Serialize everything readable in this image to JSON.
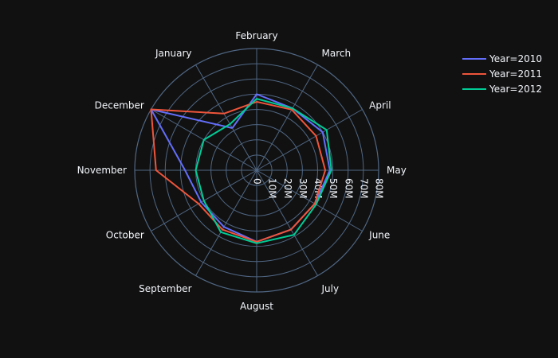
{
  "chart_data": {
    "type": "line",
    "subtype": "polar",
    "categories": [
      "January",
      "February",
      "March",
      "April",
      "May",
      "June",
      "July",
      "August",
      "September",
      "October",
      "November",
      "December"
    ],
    "radial_axis": {
      "range": [
        0,
        80000000
      ],
      "tick_values": [
        0,
        10000000,
        20000000,
        30000000,
        40000000,
        50000000,
        60000000,
        70000000,
        80000000
      ],
      "tick_labels": [
        "0",
        "10M",
        "20M",
        "30M",
        "40M",
        "50M",
        "60M",
        "70M",
        "80M"
      ]
    },
    "series": [
      {
        "name": "Year=2010",
        "color": "#636efa",
        "values": [
          32000000,
          50000000,
          47000000,
          50000000,
          48000000,
          44000000,
          45000000,
          47000000,
          43000000,
          42000000,
          47000000,
          80000000
        ]
      },
      {
        "name": "Year=2011",
        "color": "#ef553b",
        "values": [
          43000000,
          45000000,
          46000000,
          45000000,
          45000000,
          44000000,
          45000000,
          47000000,
          45000000,
          44000000,
          66000000,
          80000000
        ]
      },
      {
        "name": "Year=2012",
        "color": "#00cc96",
        "values": [
          35000000,
          47000000,
          47000000,
          53000000,
          49000000,
          45000000,
          49000000,
          48000000,
          47000000,
          40000000,
          40000000,
          40000000
        ]
      }
    ],
    "legend_position": "top-right",
    "grid": true
  }
}
